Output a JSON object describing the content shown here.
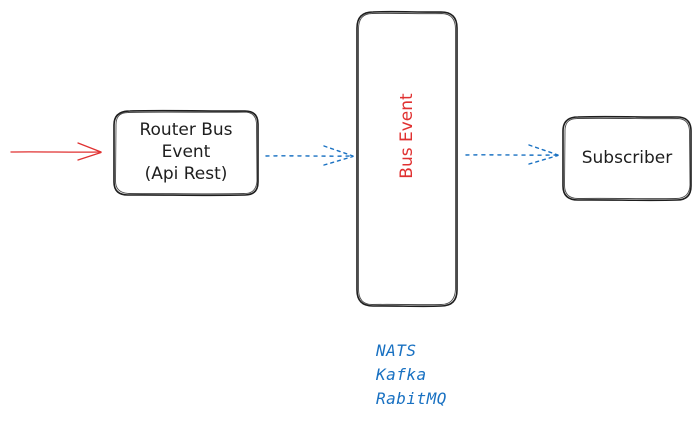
{
  "diagram": {
    "nodes": {
      "router": {
        "lines": [
          "Router Bus",
          "Event",
          "(Api Rest)"
        ]
      },
      "bus": {
        "label": "Bus Event"
      },
      "subscriber": {
        "label": "Subscriber"
      }
    },
    "technologies": [
      "NATS",
      "Kafka",
      "RabitMQ"
    ],
    "colors": {
      "stroke": "#1e1e1e",
      "incoming_arrow": "#e03131",
      "bus_label": "#e03131",
      "dotted_arrows": "#1971c2",
      "technologies": "#1971c2"
    }
  }
}
